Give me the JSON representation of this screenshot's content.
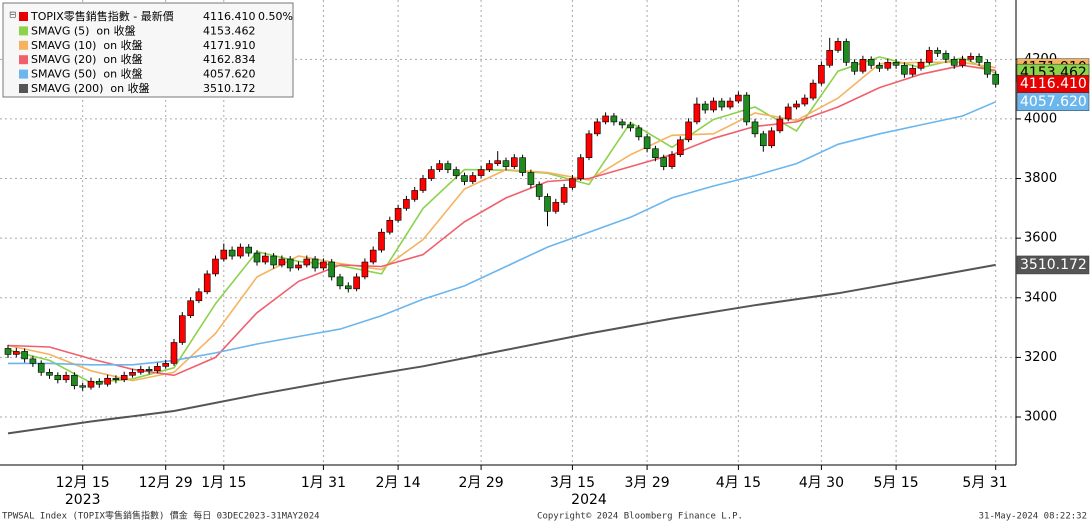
{
  "chart_data": {
    "type": "candlestick",
    "footer_left": "TPWSAL Index (TOPIX零售銷售指數) 價金  每日 03DEC2023-31MAY2024",
    "footer_center": "Copyright© 2024 Bloomberg Finance L.P.",
    "footer_right": "31-May-2024 08:22:32",
    "price_name": "TOPIX零售銷售指數 - 最新價",
    "price_color": "#e60000",
    "up_color": "#ff0000",
    "down_color": "#1f8a1f",
    "last_price": {
      "value": 4116.41,
      "label": "4116.410"
    },
    "change": {
      "value": 0.5,
      "label": "0.50%"
    },
    "categories": [
      null,
      null,
      null,
      null,
      null,
      null,
      null,
      null,
      null,
      "12月 15",
      null,
      null,
      null,
      null,
      null,
      null,
      null,
      null,
      null,
      "12月 29",
      null,
      null,
      null,
      null,
      null,
      null,
      "1月 15",
      null,
      null,
      null,
      null,
      null,
      null,
      null,
      null,
      null,
      null,
      null,
      "1月 31",
      null,
      null,
      null,
      null,
      null,
      null,
      null,
      null,
      "2月 14",
      null,
      null,
      null,
      null,
      null,
      null,
      null,
      null,
      null,
      "2月 29",
      null,
      null,
      null,
      null,
      null,
      null,
      null,
      null,
      null,
      null,
      "3月 15",
      null,
      null,
      null,
      null,
      null,
      null,
      null,
      null,
      "3月 29",
      null,
      null,
      null,
      null,
      null,
      null,
      null,
      null,
      null,
      null,
      "4月 15",
      null,
      null,
      null,
      null,
      null,
      null,
      null,
      null,
      null,
      "4月 30",
      null,
      null,
      null,
      null,
      null,
      null,
      null,
      null,
      "5月 15",
      null,
      null,
      null,
      null,
      null,
      null,
      null,
      null,
      null,
      null,
      null,
      "5月 31"
    ],
    "year_labels": [
      {
        "value": 9,
        "label": "2023"
      },
      {
        "value": 70,
        "label": "2024"
      }
    ],
    "candles": [
      [
        3230,
        3242,
        3198,
        3210
      ],
      [
        3210,
        3232,
        3200,
        3220
      ],
      [
        3220,
        3230,
        3183,
        3195
      ],
      [
        3195,
        3205,
        3168,
        3180
      ],
      [
        3180,
        3190,
        3138,
        3150
      ],
      [
        3150,
        3162,
        3128,
        3140
      ],
      [
        3140,
        3150,
        3113,
        3125
      ],
      [
        3125,
        3152,
        3115,
        3140
      ],
      [
        3140,
        3150,
        3093,
        3105
      ],
      [
        3105,
        3115,
        3088,
        3100
      ],
      [
        3100,
        3132,
        3092,
        3120
      ],
      [
        3120,
        3130,
        3098,
        3110
      ],
      [
        3110,
        3142,
        3102,
        3130
      ],
      [
        3130,
        3140,
        3113,
        3125
      ],
      [
        3125,
        3152,
        3117,
        3140
      ],
      [
        3140,
        3162,
        3132,
        3150
      ],
      [
        3150,
        3172,
        3142,
        3160
      ],
      [
        3160,
        3170,
        3143,
        3155
      ],
      [
        3155,
        3182,
        3147,
        3170
      ],
      [
        3170,
        3192,
        3162,
        3180
      ],
      [
        3180,
        3262,
        3172,
        3250
      ],
      [
        3250,
        3352,
        3242,
        3340
      ],
      [
        3340,
        3402,
        3332,
        3390
      ],
      [
        3390,
        3432,
        3382,
        3420
      ],
      [
        3420,
        3492,
        3412,
        3480
      ],
      [
        3480,
        3542,
        3472,
        3530
      ],
      [
        3530,
        3582,
        3522,
        3560
      ],
      [
        3560,
        3572,
        3528,
        3540
      ],
      [
        3540,
        3582,
        3532,
        3570
      ],
      [
        3570,
        3580,
        3538,
        3550
      ],
      [
        3550,
        3560,
        3508,
        3520
      ],
      [
        3520,
        3552,
        3512,
        3540
      ],
      [
        3540,
        3550,
        3498,
        3510
      ],
      [
        3510,
        3542,
        3502,
        3530
      ],
      [
        3530,
        3540,
        3488,
        3500
      ],
      [
        3500,
        3522,
        3492,
        3510
      ],
      [
        3510,
        3542,
        3502,
        3530
      ],
      [
        3530,
        3540,
        3488,
        3500
      ],
      [
        3500,
        3532,
        3492,
        3520
      ],
      [
        3520,
        3530,
        3458,
        3470
      ],
      [
        3470,
        3480,
        3428,
        3440
      ],
      [
        3440,
        3452,
        3418,
        3430
      ],
      [
        3430,
        3482,
        3422,
        3470
      ],
      [
        3470,
        3532,
        3462,
        3520
      ],
      [
        3520,
        3572,
        3512,
        3560
      ],
      [
        3560,
        3632,
        3552,
        3620
      ],
      [
        3620,
        3672,
        3612,
        3660
      ],
      [
        3660,
        3712,
        3652,
        3700
      ],
      [
        3700,
        3742,
        3692,
        3730
      ],
      [
        3730,
        3772,
        3722,
        3760
      ],
      [
        3760,
        3812,
        3752,
        3800
      ],
      [
        3800,
        3842,
        3792,
        3830
      ],
      [
        3830,
        3862,
        3822,
        3850
      ],
      [
        3850,
        3860,
        3818,
        3830
      ],
      [
        3830,
        3840,
        3798,
        3810
      ],
      [
        3810,
        3820,
        3778,
        3790
      ],
      [
        3790,
        3822,
        3782,
        3810
      ],
      [
        3810,
        3842,
        3802,
        3830
      ],
      [
        3830,
        3862,
        3822,
        3850
      ],
      [
        3850,
        3892,
        3842,
        3860
      ],
      [
        3860,
        3870,
        3828,
        3840
      ],
      [
        3840,
        3882,
        3832,
        3870
      ],
      [
        3870,
        3880,
        3808,
        3820
      ],
      [
        3820,
        3830,
        3768,
        3780
      ],
      [
        3780,
        3790,
        3728,
        3740
      ],
      [
        3740,
        3750,
        3640,
        3690
      ],
      [
        3690,
        3732,
        3682,
        3720
      ],
      [
        3720,
        3782,
        3712,
        3770
      ],
      [
        3770,
        3812,
        3762,
        3800
      ],
      [
        3800,
        3882,
        3792,
        3870
      ],
      [
        3870,
        3962,
        3862,
        3950
      ],
      [
        3950,
        4002,
        3942,
        3990
      ],
      [
        3990,
        4022,
        3982,
        4010
      ],
      [
        4010,
        4020,
        3978,
        3990
      ],
      [
        3990,
        4000,
        3968,
        3980
      ],
      [
        3980,
        3990,
        3958,
        3970
      ],
      [
        3970,
        3980,
        3928,
        3940
      ],
      [
        3940,
        3950,
        3888,
        3900
      ],
      [
        3900,
        3910,
        3858,
        3870
      ],
      [
        3870,
        3880,
        3828,
        3840
      ],
      [
        3840,
        3892,
        3832,
        3880
      ],
      [
        3880,
        3942,
        3872,
        3930
      ],
      [
        3930,
        4002,
        3922,
        3990
      ],
      [
        3990,
        4072,
        3982,
        4050
      ],
      [
        4050,
        4060,
        4018,
        4030
      ],
      [
        4030,
        4072,
        4022,
        4060
      ],
      [
        4060,
        4070,
        4028,
        4040
      ],
      [
        4040,
        4072,
        4032,
        4060
      ],
      [
        4060,
        4092,
        4052,
        4080
      ],
      [
        4080,
        4090,
        3978,
        3990
      ],
      [
        3990,
        4000,
        3938,
        3950
      ],
      [
        3950,
        3960,
        3890,
        3910
      ],
      [
        3910,
        3972,
        3902,
        3960
      ],
      [
        3960,
        4012,
        3952,
        4000
      ],
      [
        4000,
        4052,
        3992,
        4040
      ],
      [
        4040,
        4062,
        4032,
        4050
      ],
      [
        4050,
        4082,
        4042,
        4070
      ],
      [
        4070,
        4132,
        4062,
        4120
      ],
      [
        4120,
        4192,
        4112,
        4180
      ],
      [
        4180,
        4272,
        4172,
        4230
      ],
      [
        4230,
        4272,
        4222,
        4260
      ],
      [
        4260,
        4270,
        4178,
        4190
      ],
      [
        4190,
        4200,
        4148,
        4160
      ],
      [
        4160,
        4212,
        4152,
        4200
      ],
      [
        4200,
        4210,
        4168,
        4180
      ],
      [
        4180,
        4190,
        4158,
        4170
      ],
      [
        4170,
        4202,
        4162,
        4190
      ],
      [
        4190,
        4200,
        4168,
        4180
      ],
      [
        4180,
        4190,
        4138,
        4150
      ],
      [
        4150,
        4182,
        4142,
        4170
      ],
      [
        4170,
        4202,
        4162,
        4190
      ],
      [
        4190,
        4242,
        4182,
        4230
      ],
      [
        4230,
        4240,
        4208,
        4220
      ],
      [
        4220,
        4230,
        4188,
        4200
      ],
      [
        4200,
        4210,
        4168,
        4180
      ],
      [
        4180,
        4212,
        4172,
        4200
      ],
      [
        4200,
        4222,
        4192,
        4210
      ],
      [
        4210,
        4220,
        4178,
        4190
      ],
      [
        4190,
        4200,
        4138,
        4150
      ],
      [
        4150,
        4160,
        4105,
        4116.41
      ]
    ],
    "series": [
      {
        "name": "SMAVG (5)  on 收盤",
        "color": "#8cd24a",
        "last_label": "4153.462",
        "x": [
          0,
          5,
          10,
          15,
          20,
          25,
          30,
          35,
          40,
          45,
          50,
          55,
          60,
          65,
          70,
          75,
          80,
          85,
          90,
          95,
          100,
          105,
          110,
          115,
          119
        ],
        "values": [
          3225,
          3190,
          3115,
          3128,
          3165,
          3380,
          3555,
          3522,
          3508,
          3480,
          3700,
          3830,
          3828,
          3818,
          3780,
          3988,
          3905,
          3998,
          4040,
          3960,
          4160,
          4208,
          4172,
          4205,
          4153.462
        ]
      },
      {
        "name": "SMAVG (10)  on 收盤",
        "color": "#f6b35f",
        "last_label": "4171.910",
        "x": [
          0,
          5,
          10,
          15,
          20,
          25,
          30,
          35,
          40,
          45,
          50,
          55,
          60,
          65,
          70,
          75,
          80,
          85,
          90,
          95,
          100,
          105,
          110,
          115,
          119
        ],
        "values": [
          3240,
          3210,
          3155,
          3122,
          3150,
          3280,
          3470,
          3540,
          3515,
          3495,
          3595,
          3765,
          3830,
          3820,
          3795,
          3880,
          3945,
          3950,
          4020,
          3995,
          4070,
          4185,
          4190,
          4190,
          4171.91
        ]
      },
      {
        "name": "SMAVG (20)  on 收盤",
        "color": "#f0606c",
        "last_label": "4162.834",
        "x": [
          0,
          5,
          10,
          15,
          20,
          25,
          30,
          35,
          40,
          45,
          50,
          55,
          60,
          65,
          70,
          75,
          80,
          85,
          90,
          95,
          100,
          105,
          110,
          115,
          119
        ],
        "values": [
          3240,
          3235,
          3195,
          3160,
          3140,
          3200,
          3350,
          3455,
          3510,
          3505,
          3545,
          3655,
          3735,
          3790,
          3800,
          3840,
          3880,
          3935,
          3975,
          3990,
          4040,
          4105,
          4150,
          4180,
          4162.834
        ]
      },
      {
        "name": "SMAVG (50)  on 收盤",
        "color": "#6cb6ee",
        "last_label": "4057.620",
        "x": [
          0,
          5,
          10,
          15,
          20,
          25,
          30,
          35,
          40,
          45,
          50,
          55,
          60,
          65,
          70,
          75,
          80,
          85,
          90,
          95,
          100,
          105,
          110,
          115,
          119
        ],
        "values": [
          3180,
          3180,
          3175,
          3175,
          3190,
          3215,
          3245,
          3270,
          3295,
          3340,
          3395,
          3440,
          3505,
          3570,
          3620,
          3670,
          3735,
          3775,
          3810,
          3850,
          3915,
          3950,
          3980,
          4010,
          4057.62
        ]
      },
      {
        "name": "SMAVG (200)  on 收盤",
        "color": "#555555",
        "last_label": "3510.172",
        "x": [
          0,
          10,
          20,
          30,
          40,
          50,
          60,
          70,
          80,
          90,
          100,
          110,
          119
        ],
        "values": [
          2945,
          2985,
          3020,
          3075,
          3125,
          3170,
          3225,
          3280,
          3330,
          3375,
          3415,
          3465,
          3510.172
        ]
      }
    ],
    "ylim": [
      2839,
      4399
    ],
    "yticks": [
      3000,
      3200,
      3400,
      3600,
      3800,
      4000,
      4200
    ],
    "grid": true
  }
}
